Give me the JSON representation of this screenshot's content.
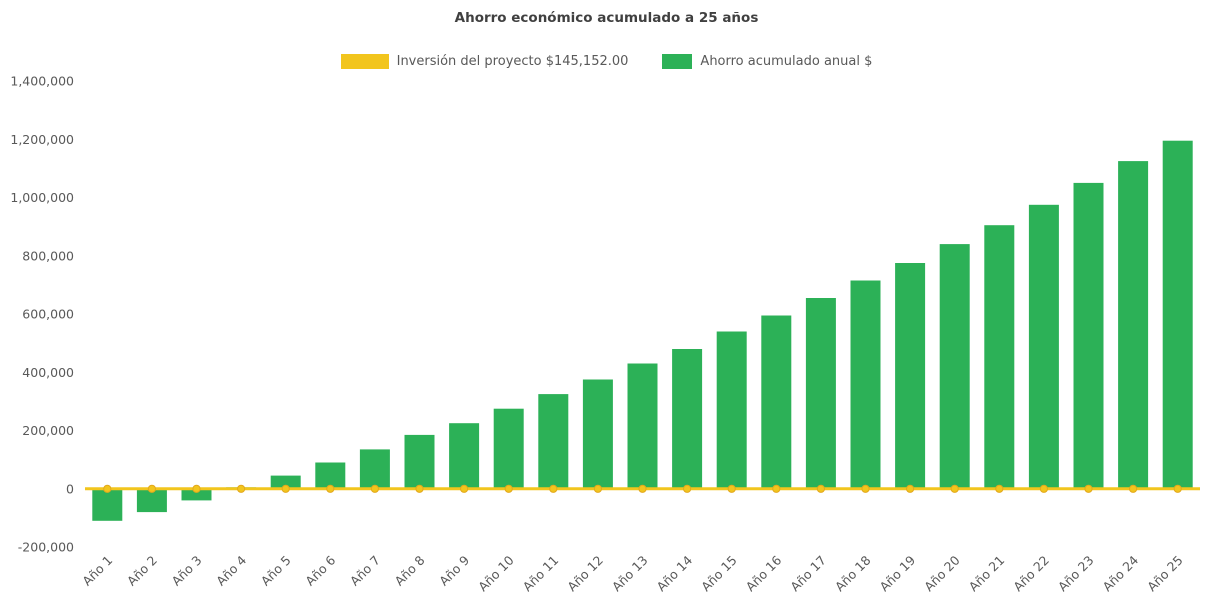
{
  "chart_data": {
    "type": "bar",
    "title": "Ahorro económico acumulado a 25 años",
    "xlabel": "",
    "ylabel": "",
    "ylim": [
      -200000,
      1400000
    ],
    "ytick_step": 200000,
    "grid": false,
    "legend_position": "top",
    "categories": [
      "Año 1",
      "Año 2",
      "Año 3",
      "Año 4",
      "Año 5",
      "Año 6",
      "Año 7",
      "Año 8",
      "Año 9",
      "Año 10",
      "Año 11",
      "Año 12",
      "Año 13",
      "Año 14",
      "Año 15",
      "Año 16",
      "Año 17",
      "Año 18",
      "Año 19",
      "Año 20",
      "Año 21",
      "Año 22",
      "Año 23",
      "Año 24",
      "Año 25"
    ],
    "series": [
      {
        "name": "Inversión del proyecto $145,152.00",
        "type": "line",
        "color": "#F2C51D",
        "marker_stroke": "#E3A81C",
        "constant_y": 0
      },
      {
        "name": "Ahorro acumulado anual $",
        "type": "bar",
        "color": "#2CB157",
        "values": [
          -110000,
          -80000,
          -40000,
          5000,
          45000,
          90000,
          135000,
          185000,
          225000,
          275000,
          325000,
          375000,
          430000,
          480000,
          540000,
          595000,
          655000,
          715000,
          775000,
          840000,
          905000,
          975000,
          1050000,
          1125000,
          1195000
        ]
      }
    ]
  }
}
